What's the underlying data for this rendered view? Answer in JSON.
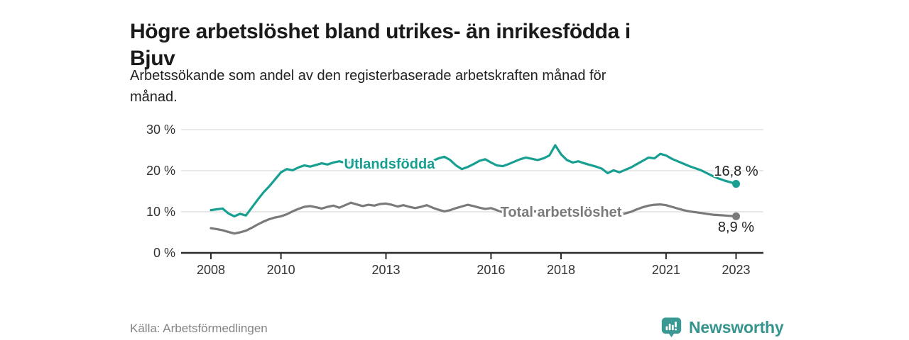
{
  "header": {
    "title_line1": "Högre arbetslöshet bland utrikes- än inrikesfödda i",
    "title_line2": "Bjuv",
    "subtitle_line1": "Arbetssökande som andel av den registerbaserade arbetskraften månad för",
    "subtitle_line2": "månad."
  },
  "footer": {
    "source": "Källa: Arbetsförmedlingen",
    "brand": "Newsworthy"
  },
  "colors": {
    "teal": "#17a092",
    "gray": "#7a7a7a",
    "grid": "#dadada",
    "axis": "#2b2b2b",
    "text_axis": "#333333",
    "value_label": "#222222",
    "brand_teal": "#3a9a93"
  },
  "chart_data": {
    "type": "line",
    "title": "Högre arbetslöshet bland utrikes- än inrikesfödda i Bjuv",
    "subtitle": "Arbetssökande som andel av den registerbaserade arbetskraften månad för månad.",
    "ylabel": "",
    "xlabel": "",
    "ylim": [
      0,
      30
    ],
    "grid": "horizontal",
    "x_start_year": 2008,
    "x_step_months": 2,
    "series": [
      {
        "name": "Utlandsfödda",
        "color_key": "teal",
        "end_value_label": "16,8 %",
        "values": [
          10.4,
          10.6,
          10.8,
          9.6,
          8.9,
          9.5,
          9.1,
          11.0,
          12.9,
          14.7,
          16.2,
          17.9,
          19.6,
          20.4,
          20.1,
          20.8,
          21.3,
          21.0,
          21.4,
          21.8,
          21.5,
          22.0,
          22.3,
          21.9,
          22.1,
          22.4,
          21.9,
          22.2,
          21.8,
          22.0,
          21.7,
          22.0,
          21.6,
          21.9,
          21.5,
          21.8,
          21.5,
          21.9,
          22.4,
          23.0,
          23.4,
          22.6,
          21.3,
          20.4,
          20.9,
          21.6,
          22.4,
          22.8,
          22.0,
          21.3,
          21.1,
          21.6,
          22.2,
          22.8,
          23.2,
          22.9,
          22.6,
          23.0,
          23.7,
          26.2,
          24.0,
          22.6,
          22.0,
          22.3,
          21.8,
          21.4,
          21.0,
          20.5,
          19.4,
          20.1,
          19.6,
          20.2,
          20.8,
          21.6,
          22.4,
          23.2,
          23.0,
          24.1,
          23.7,
          22.9,
          22.3,
          21.7,
          21.1,
          20.6,
          20.1,
          19.4,
          18.7,
          18.1,
          17.6,
          17.2,
          16.8
        ]
      },
      {
        "name": "Total arbetslöshet",
        "color_key": "gray",
        "end_value_label": "8,9 %",
        "values": [
          6.0,
          5.8,
          5.5,
          5.1,
          4.7,
          5.0,
          5.4,
          6.1,
          6.9,
          7.6,
          8.2,
          8.6,
          8.9,
          9.4,
          10.1,
          10.7,
          11.2,
          11.4,
          11.1,
          10.8,
          11.2,
          11.5,
          11.0,
          11.6,
          12.2,
          11.8,
          11.4,
          11.7,
          11.5,
          11.9,
          12.0,
          11.7,
          11.3,
          11.6,
          11.2,
          10.9,
          11.2,
          11.6,
          11.0,
          10.5,
          10.1,
          10.4,
          10.9,
          11.3,
          11.7,
          11.4,
          11.0,
          10.7,
          10.9,
          10.4,
          9.9,
          9.7,
          9.9,
          10.2,
          10.5,
          10.2,
          10.0,
          10.2,
          10.4,
          10.1,
          9.9,
          9.7,
          9.5,
          9.6,
          9.3,
          9.1,
          9.0,
          9.2,
          9.0,
          9.1,
          9.3,
          9.6,
          10.0,
          10.6,
          11.1,
          11.5,
          11.7,
          11.8,
          11.6,
          11.2,
          10.8,
          10.4,
          10.1,
          9.9,
          9.7,
          9.5,
          9.3,
          9.2,
          9.1,
          9.0,
          8.9
        ]
      }
    ],
    "y_ticks": [
      {
        "value": 0,
        "label": "0 %"
      },
      {
        "value": 10,
        "label": "10 %"
      },
      {
        "value": 20,
        "label": "20 %"
      },
      {
        "value": 30,
        "label": "30 %"
      }
    ],
    "x_ticks": [
      {
        "year": 2008,
        "label": "2008"
      },
      {
        "year": 2010,
        "label": "2010"
      },
      {
        "year": 2013,
        "label": "2013"
      },
      {
        "year": 2016,
        "label": "2016"
      },
      {
        "year": 2018,
        "label": "2018"
      },
      {
        "year": 2021,
        "label": "2021"
      },
      {
        "year": 2023,
        "label": "2023"
      }
    ],
    "series_labels": [
      {
        "text": "Utlandsfödda",
        "color_key": "teal",
        "x_year": 2013.1,
        "y_value": 20.55
      },
      {
        "text": "Total arbetslöshet",
        "color_key": "gray",
        "x_year": 2018.0,
        "y_value": 8.8
      }
    ],
    "end_labels": [
      {
        "text": "16,8 %",
        "x_year": 2023.0,
        "y_value": 18.8
      },
      {
        "text": "8,9 %",
        "x_year": 2023.0,
        "y_value": 5.2
      }
    ]
  }
}
